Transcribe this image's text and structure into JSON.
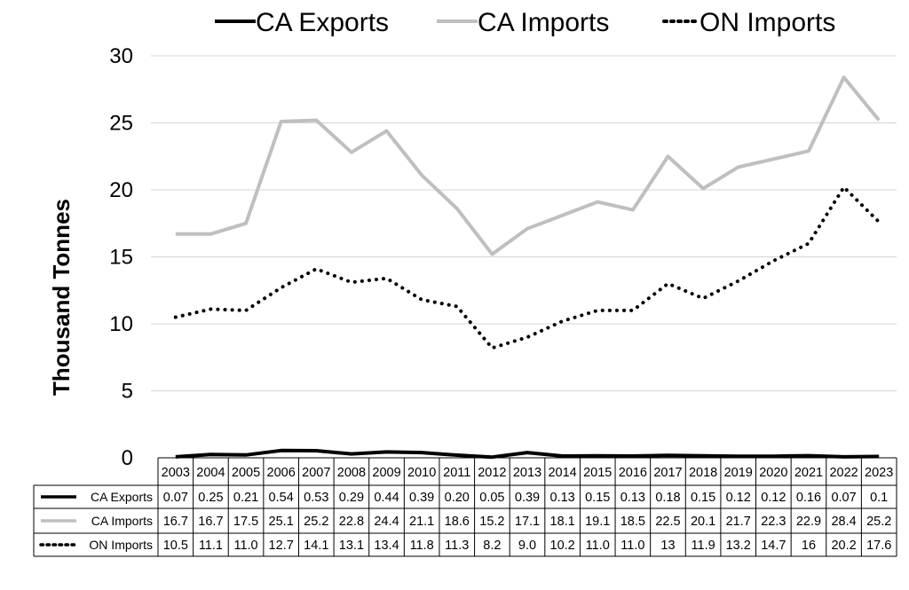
{
  "chart_data": {
    "type": "line",
    "title": "",
    "xlabel": "",
    "ylabel": "Thousand Tonnes",
    "ylim": [
      0,
      30
    ],
    "yticks": [
      0,
      5,
      10,
      15,
      20,
      25,
      30
    ],
    "grid": true,
    "legend_position": "top",
    "categories": [
      "2003",
      "2004",
      "2005",
      "2006",
      "2007",
      "2008",
      "2009",
      "2010",
      "2011",
      "2012",
      "2013",
      "2014",
      "2015",
      "2016",
      "2017",
      "2018",
      "2019",
      "2020",
      "2021",
      "2022",
      "2023"
    ],
    "series": [
      {
        "name": "CA Exports",
        "color": "#000000",
        "style": "solid",
        "values": [
          0.07,
          0.25,
          0.21,
          0.54,
          0.53,
          0.29,
          0.44,
          0.39,
          0.2,
          0.05,
          0.39,
          0.13,
          0.15,
          0.13,
          0.18,
          0.15,
          0.12,
          0.12,
          0.16,
          0.07,
          0.1
        ],
        "labels": [
          "0.07",
          "0.25",
          "0.21",
          "0.54",
          "0.53",
          "0.29",
          "0.44",
          "0.39",
          "0.20",
          "0.05",
          "0.39",
          "0.13",
          "0.15",
          "0.13",
          "0.18",
          "0.15",
          "0.12",
          "0.12",
          "0.16",
          "0.07",
          "0.1"
        ]
      },
      {
        "name": "CA Imports",
        "color": "#bfbfbf",
        "style": "solid",
        "values": [
          16.7,
          16.7,
          17.5,
          25.1,
          25.2,
          22.8,
          24.4,
          21.1,
          18.6,
          15.2,
          17.1,
          18.1,
          19.1,
          18.5,
          22.5,
          20.1,
          21.7,
          22.3,
          22.9,
          28.4,
          25.2
        ],
        "labels": [
          "16.7",
          "16.7",
          "17.5",
          "25.1",
          "25.2",
          "22.8",
          "24.4",
          "21.1",
          "18.6",
          "15.2",
          "17.1",
          "18.1",
          "19.1",
          "18.5",
          "22.5",
          "20.1",
          "21.7",
          "22.3",
          "22.9",
          "28.4",
          "25.2"
        ]
      },
      {
        "name": "ON Imports",
        "color": "#000000",
        "style": "dotted",
        "values": [
          10.5,
          11.1,
          11.0,
          12.7,
          14.1,
          13.1,
          13.4,
          11.8,
          11.3,
          8.2,
          9.0,
          10.2,
          11.0,
          11.0,
          13,
          11.9,
          13.2,
          14.7,
          16,
          20.2,
          17.6
        ],
        "labels": [
          "10.5",
          "11.1",
          "11.0",
          "12.7",
          "14.1",
          "13.1",
          "13.4",
          "11.8",
          "11.3",
          "8.2",
          "9.0",
          "10.2",
          "11.0",
          "11.0",
          "13",
          "11.9",
          "13.2",
          "14.7",
          "16",
          "20.2",
          "17.6"
        ]
      }
    ]
  }
}
